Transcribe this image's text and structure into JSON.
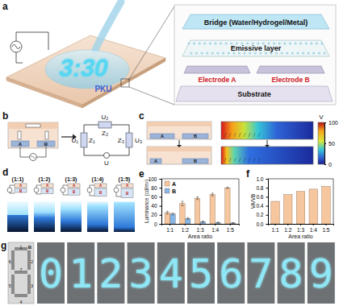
{
  "chart_data": [
    {
      "type": "bar",
      "x_label": "Area ratio",
      "y_label": "Luminance (cd/m²)",
      "categories": [
        "1:1",
        "1:2",
        "1:3",
        "1:4",
        "1:5"
      ],
      "series": [
        {
          "name": "A",
          "color": "#f6c79e",
          "values": [
            25,
            45,
            57,
            65,
            80
          ],
          "errors": [
            3,
            5,
            3,
            3,
            1.5
          ]
        },
        {
          "name": "B",
          "color": "#85b6e8",
          "values": [
            22,
            12,
            5,
            3,
            2
          ],
          "errors": [
            2,
            2,
            1,
            1,
            0.5
          ]
        }
      ],
      "ylim": [
        0,
        100
      ],
      "yticks": [
        0,
        20,
        40,
        60,
        80,
        100
      ],
      "legend": "upper left"
    },
    {
      "type": "bar",
      "x_label": "Area ratio",
      "y_label": "VA/VB",
      "categories": [
        "1:1",
        "1:2",
        "1:3",
        "1:4",
        "1:5"
      ],
      "values": [
        0.5,
        0.65,
        0.72,
        0.77,
        0.83
      ],
      "color": "#f6c79e",
      "ylim": [
        0,
        1
      ],
      "yticks": [
        {
          "value": 0,
          "label": "0.0"
        },
        0.2,
        0.4,
        0.6,
        0.8,
        {
          "value": 1,
          "label": "1.0"
        }
      ]
    }
  ],
  "figure": {
    "panel_labels": [
      "a",
      "b",
      "c",
      "d",
      "e",
      "f",
      "g"
    ],
    "a": {
      "clock": "3:30",
      "logo": "PKU",
      "bridge": "Bridge (Water/Hydrogel/Metal)",
      "emissive": "Emissive layer",
      "electrode_a": "Electrode A",
      "electrode_b": "Electrode B",
      "substrate": "Substrate"
    },
    "b": {
      "blocks": [
        "A",
        "B"
      ],
      "labels": {
        "u1": "U₁",
        "z1": "Z₁",
        "u2": "U₂",
        "z2": "Z₂",
        "u3": "U₃",
        "z3": "Z₃",
        "u": "U"
      }
    },
    "c": {
      "blocks": [
        "A",
        "B"
      ],
      "colorbar": {
        "label": "V",
        "range": [
          0,
          100
        ],
        "ticks": [
          0,
          50,
          100
        ]
      }
    },
    "d": {
      "ratios": [
        "(1:1)",
        "(1:2)",
        "(1:3)",
        "(1:4)",
        "(1:5)"
      ],
      "blocks": [
        "A",
        "B"
      ]
    },
    "g": {
      "segments": [
        "1",
        "2",
        "3",
        "4",
        "5",
        "6",
        "7"
      ],
      "block": "B",
      "digits": [
        "0",
        "1",
        "2",
        "3",
        "4",
        "5",
        "6",
        "7",
        "8",
        "9"
      ]
    }
  }
}
